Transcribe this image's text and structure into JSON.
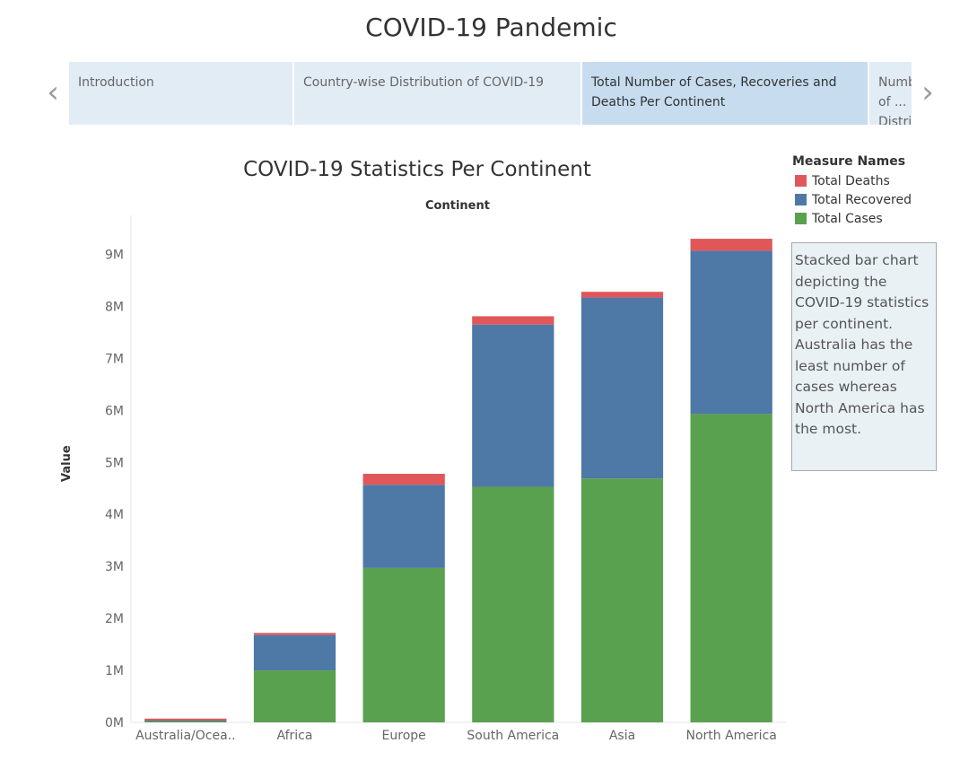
{
  "story": {
    "title": "COVID-19 Pandemic",
    "tabs": [
      {
        "label": "Introduction",
        "active": false
      },
      {
        "label": "Country-wise Distribution of COVID-19",
        "active": false
      },
      {
        "label": "Total Number of Cases, Recoveries and Deaths Per Continent",
        "active": true
      },
      {
        "label": "Number of ... Distribution ...",
        "active": false
      }
    ]
  },
  "annotation": {
    "text": "Stacked bar chart depicting the COVID-19 statistics per continent. Australia has the least number of cases whereas North America has the most."
  },
  "legend": {
    "title": "Measure Names",
    "items": [
      {
        "label": "Total Deaths",
        "color": "#e15759"
      },
      {
        "label": "Total Recovered",
        "color": "#4e79a7"
      },
      {
        "label": "Total Cases",
        "color": "#59a14f"
      }
    ]
  },
  "chart_data": {
    "type": "bar",
    "stacked": true,
    "title": "COVID-19 Statistics Per Continent",
    "xlabel": "Continent",
    "ylabel": "Value",
    "categories": [
      "Australia/Ocea..",
      "Africa",
      "Europe",
      "South America",
      "Asia",
      "North America"
    ],
    "series": [
      {
        "name": "Total Cases",
        "color": "#59a14f",
        "values": [
          22000,
          1000000,
          2970000,
          4530000,
          4690000,
          5930000
        ]
      },
      {
        "name": "Total Recovered",
        "color": "#4e79a7",
        "values": [
          16000,
          680000,
          1600000,
          3120000,
          3480000,
          3140000
        ]
      },
      {
        "name": "Total Deaths",
        "color": "#e15759",
        "values": [
          700,
          40000,
          210000,
          160000,
          110000,
          230000
        ]
      }
    ],
    "yticks": [
      0,
      1000000,
      2000000,
      3000000,
      4000000,
      5000000,
      6000000,
      7000000,
      8000000,
      9000000
    ],
    "ytick_labels": [
      "0M",
      "1M",
      "2M",
      "3M",
      "4M",
      "5M",
      "6M",
      "7M",
      "8M",
      "9M"
    ],
    "ylim": [
      0,
      9750000
    ],
    "grid": false,
    "legend_position": "right"
  }
}
